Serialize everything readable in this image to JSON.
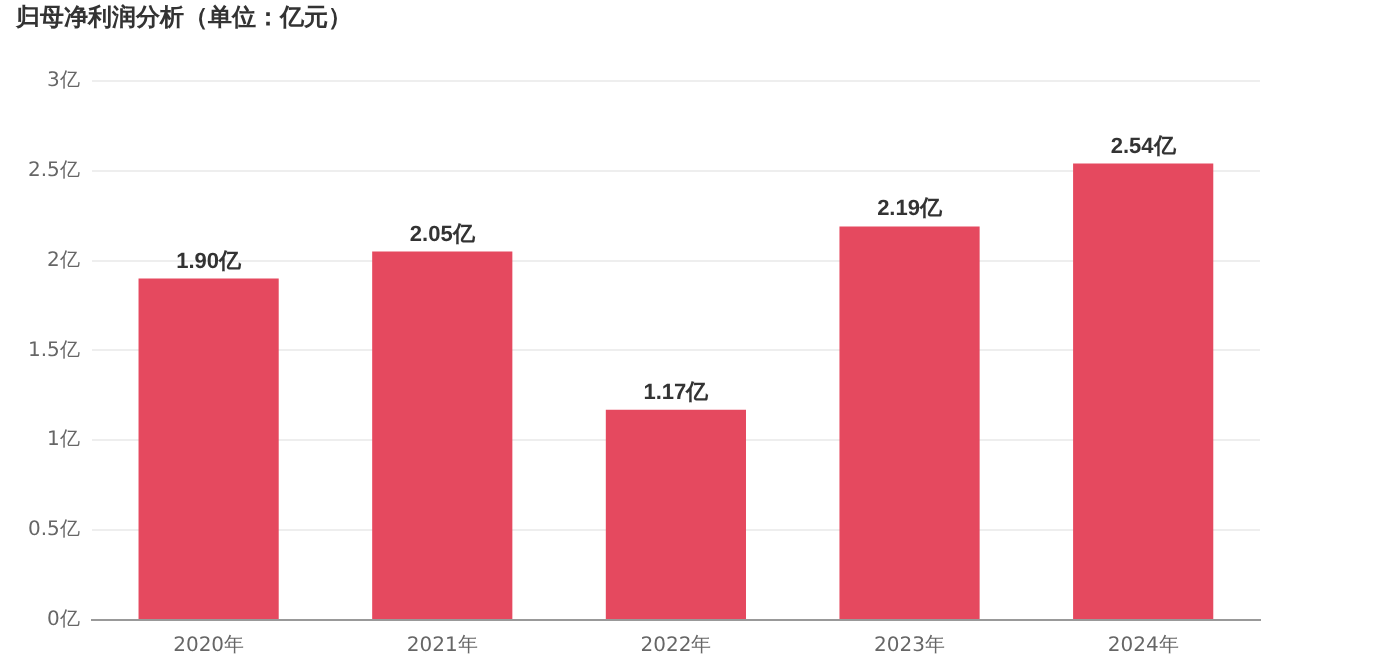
{
  "chart_data": {
    "type": "bar",
    "title": "归母净利润分析（单位：亿元）",
    "categories": [
      "2020年",
      "2021年",
      "2022年",
      "2023年",
      "2024年"
    ],
    "values": [
      1.9,
      2.05,
      1.17,
      2.19,
      2.54
    ],
    "value_labels": [
      "1.90亿",
      "2.05亿",
      "1.17亿",
      "2.19亿",
      "2.54亿"
    ],
    "color": "#e5495f",
    "ylim": [
      0,
      3
    ],
    "yticks": [
      {
        "value": 0,
        "label": "0亿"
      },
      {
        "value": 0.5,
        "label": "0.5亿"
      },
      {
        "value": 1,
        "label": "1亿"
      },
      {
        "value": 1.5,
        "label": "1.5亿"
      },
      {
        "value": 2,
        "label": "2亿"
      },
      {
        "value": 2.5,
        "label": "2.5亿"
      },
      {
        "value": 3,
        "label": "3亿"
      }
    ],
    "grid": "y",
    "legend": false
  }
}
